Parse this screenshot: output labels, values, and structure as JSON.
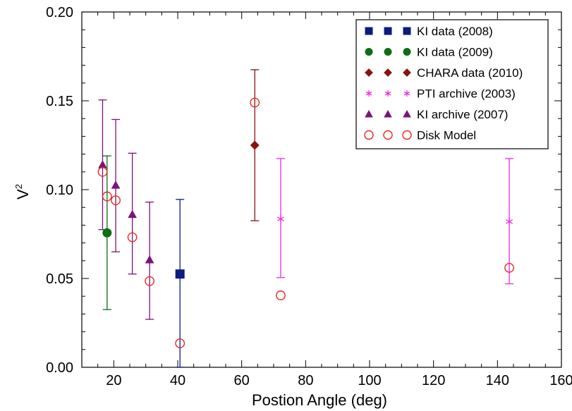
{
  "chart_data": {
    "type": "scatter",
    "title": "",
    "xlabel": "Postion Angle (deg)",
    "ylabel": "V",
    "ylabel_superscript": "2",
    "xlim": [
      10,
      160
    ],
    "ylim": [
      0.0,
      0.2
    ],
    "xticks": [
      20,
      40,
      60,
      80,
      100,
      120,
      140,
      160
    ],
    "xtick_labels": [
      "20",
      "40",
      "60",
      "80",
      "100",
      "120",
      "140",
      "160"
    ],
    "yticks": [
      0.0,
      0.05,
      0.1,
      0.15,
      0.2
    ],
    "ytick_labels": [
      "0.00",
      "0.05",
      "0.10",
      "0.15",
      "0.20"
    ],
    "grid": false,
    "legend_position": "top-right",
    "series": [
      {
        "name": "KI data (2008)",
        "marker": "square",
        "filled": true,
        "color": "#0a1c80",
        "points": [
          {
            "x": 40.7,
            "y": 0.0525,
            "err_low": 0.0,
            "err_high": 0.0945
          }
        ]
      },
      {
        "name": "KI data (2009)",
        "marker": "circle",
        "filled": true,
        "color": "#0f6d13",
        "points": [
          {
            "x": 17.9,
            "y": 0.0757,
            "err_low": 0.0325,
            "err_high": 0.119
          }
        ]
      },
      {
        "name": "CHARA data (2010)",
        "marker": "diamond",
        "filled": true,
        "color": "#8b1111",
        "points": [
          {
            "x": 64.1,
            "y": 0.125,
            "err_low": 0.0825,
            "err_high": 0.1675
          }
        ]
      },
      {
        "name": "PTI archive (2003)",
        "marker": "star",
        "filled": false,
        "color": "#ee2ae5",
        "points": [
          {
            "x": 72.2,
            "y": 0.0835,
            "err_low": 0.0505,
            "err_high": 0.1175
          },
          {
            "x": 143.7,
            "y": 0.082,
            "err_low": 0.047,
            "err_high": 0.1175
          }
        ]
      },
      {
        "name": "KI archive (2007)",
        "marker": "triangle",
        "filled": true,
        "color": "#7c127c",
        "points": [
          {
            "x": 16.5,
            "y": 0.114,
            "err_low": 0.0775,
            "err_high": 0.1505
          },
          {
            "x": 20.6,
            "y": 0.1025,
            "err_low": 0.065,
            "err_high": 0.1395
          },
          {
            "x": 25.8,
            "y": 0.086,
            "err_low": 0.0525,
            "err_high": 0.1205
          },
          {
            "x": 31.2,
            "y": 0.0605,
            "err_low": 0.027,
            "err_high": 0.093
          }
        ]
      },
      {
        "name": "Disk Model",
        "marker": "circle",
        "filled": false,
        "color": "#e8281f",
        "points": [
          {
            "x": 16.5,
            "y": 0.11
          },
          {
            "x": 17.9,
            "y": 0.0962
          },
          {
            "x": 20.6,
            "y": 0.094
          },
          {
            "x": 25.8,
            "y": 0.0732
          },
          {
            "x": 31.2,
            "y": 0.0485
          },
          {
            "x": 40.7,
            "y": 0.0135
          },
          {
            "x": 64.1,
            "y": 0.149
          },
          {
            "x": 72.2,
            "y": 0.0405
          },
          {
            "x": 143.7,
            "y": 0.056
          }
        ]
      }
    ]
  }
}
